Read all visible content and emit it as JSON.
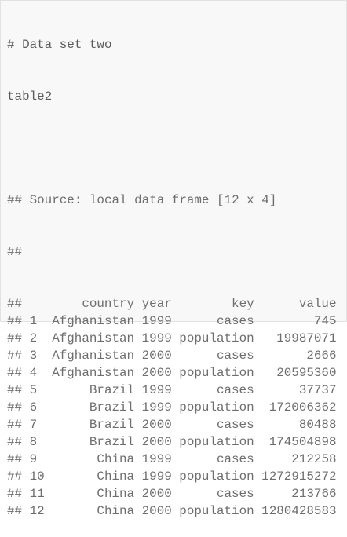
{
  "code": {
    "comment": "# Data set two",
    "command": "table2"
  },
  "output": {
    "prefix": "##",
    "source": "Source: local data frame [12 x 4]",
    "table": {
      "columns": [
        "country",
        "year",
        "key",
        "value"
      ],
      "rows": [
        [
          1,
          "Afghanistan",
          1999,
          "cases",
          745
        ],
        [
          2,
          "Afghanistan",
          1999,
          "population",
          19987071
        ],
        [
          3,
          "Afghanistan",
          2000,
          "cases",
          2666
        ],
        [
          4,
          "Afghanistan",
          2000,
          "population",
          20595360
        ],
        [
          5,
          "Brazil",
          1999,
          "cases",
          37737
        ],
        [
          6,
          "Brazil",
          1999,
          "population",
          172006362
        ],
        [
          7,
          "Brazil",
          2000,
          "cases",
          80488
        ],
        [
          8,
          "Brazil",
          2000,
          "population",
          174504898
        ],
        [
          9,
          "China",
          1999,
          "cases",
          212258
        ],
        [
          10,
          "China",
          1999,
          "population",
          1272915272
        ],
        [
          11,
          "China",
          2000,
          "cases",
          213766
        ],
        [
          12,
          "China",
          2000,
          "population",
          1280428583
        ]
      ]
    }
  }
}
